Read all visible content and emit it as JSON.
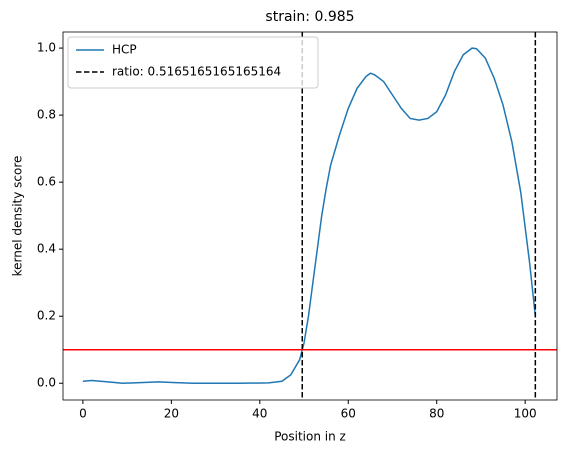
{
  "chart_data": {
    "type": "line",
    "title": "strain: 0.985",
    "xlabel": "Position in z",
    "ylabel": "kernel density score",
    "xlim": [
      -4.5,
      107.2
    ],
    "ylim": [
      -0.05,
      1.048
    ],
    "xticks": [
      0,
      20,
      40,
      60,
      80,
      100
    ],
    "yticks": [
      {
        "value": 0,
        "label": "0.0"
      },
      {
        "value": 0.2,
        "label": "0.2"
      },
      {
        "value": 0.4,
        "label": "0.4"
      },
      {
        "value": 0.6,
        "label": "0.6"
      },
      {
        "value": 0.8,
        "label": "0.8"
      },
      {
        "value": 1,
        "label": "1.0"
      }
    ],
    "legend": "upper left",
    "series": [
      {
        "name": "HCP",
        "color": "#1f77b4",
        "x": [
          0,
          2,
          5,
          9,
          13,
          17,
          21,
          25,
          35,
          42,
          45,
          47,
          49,
          50,
          51,
          52,
          53,
          54,
          55,
          56,
          58,
          60,
          62,
          64,
          65,
          66,
          68,
          70,
          72,
          74,
          76,
          78,
          80,
          82,
          84,
          86,
          88,
          89,
          91,
          93,
          95,
          97,
          99,
          101,
          102.3
        ],
        "values": [
          0.006,
          0.008,
          0.005,
          0.0,
          0.002,
          0.004,
          0.002,
          0.0,
          0.0,
          0.001,
          0.006,
          0.025,
          0.07,
          0.12,
          0.2,
          0.3,
          0.4,
          0.5,
          0.58,
          0.65,
          0.74,
          0.82,
          0.88,
          0.915,
          0.925,
          0.92,
          0.9,
          0.86,
          0.82,
          0.79,
          0.785,
          0.79,
          0.81,
          0.86,
          0.93,
          0.98,
          1.0,
          0.998,
          0.97,
          0.91,
          0.83,
          0.72,
          0.57,
          0.36,
          0.2
        ]
      }
    ],
    "vlines": {
      "name": "ratio: 0.5165165165165164",
      "color": "#000000",
      "values": [
        49.6,
        102.3
      ]
    },
    "hline": {
      "color": "#ff0000",
      "value": 0.1
    }
  }
}
